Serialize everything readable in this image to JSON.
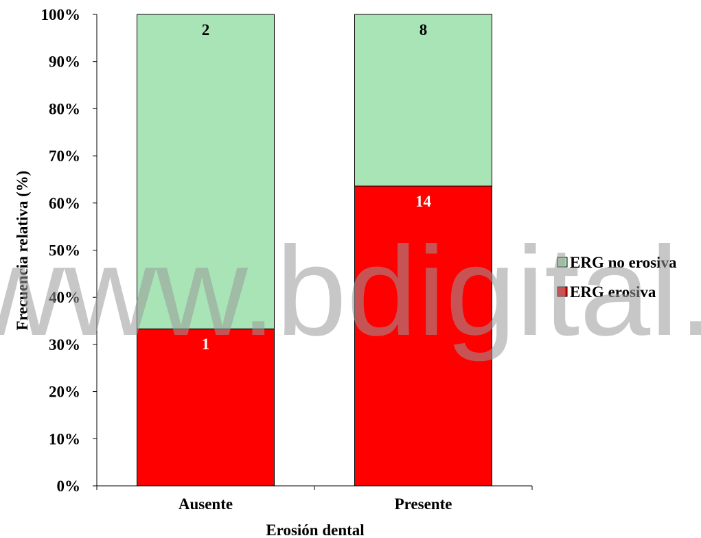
{
  "chart_data": {
    "type": "bar",
    "stacked": true,
    "normalized_percent": true,
    "categories": [
      "Ausente",
      "Presente"
    ],
    "series": [
      {
        "name": "ERG erosiva",
        "counts": [
          1,
          14
        ],
        "percent": [
          33.3,
          63.6
        ],
        "color": "#ff0000",
        "label_color": "#ffffff"
      },
      {
        "name": "ERG no erosiva",
        "counts": [
          2,
          8
        ],
        "percent": [
          66.7,
          36.4
        ],
        "color": "#a8e4b6",
        "label_color": "#000000"
      }
    ],
    "xlabel": "Erosión dental",
    "ylabel": "Frecuencia relativa (%)",
    "ylim": [
      0,
      100
    ],
    "yticks": [
      "0%",
      "10%",
      "20%",
      "30%",
      "40%",
      "50%",
      "60%",
      "70%",
      "80%",
      "90%",
      "100%"
    ],
    "legend": {
      "position": "right",
      "order": [
        "ERG no erosiva",
        "ERG erosiva"
      ]
    },
    "grid": false
  },
  "watermark": "www.bdigital.ula.ve"
}
